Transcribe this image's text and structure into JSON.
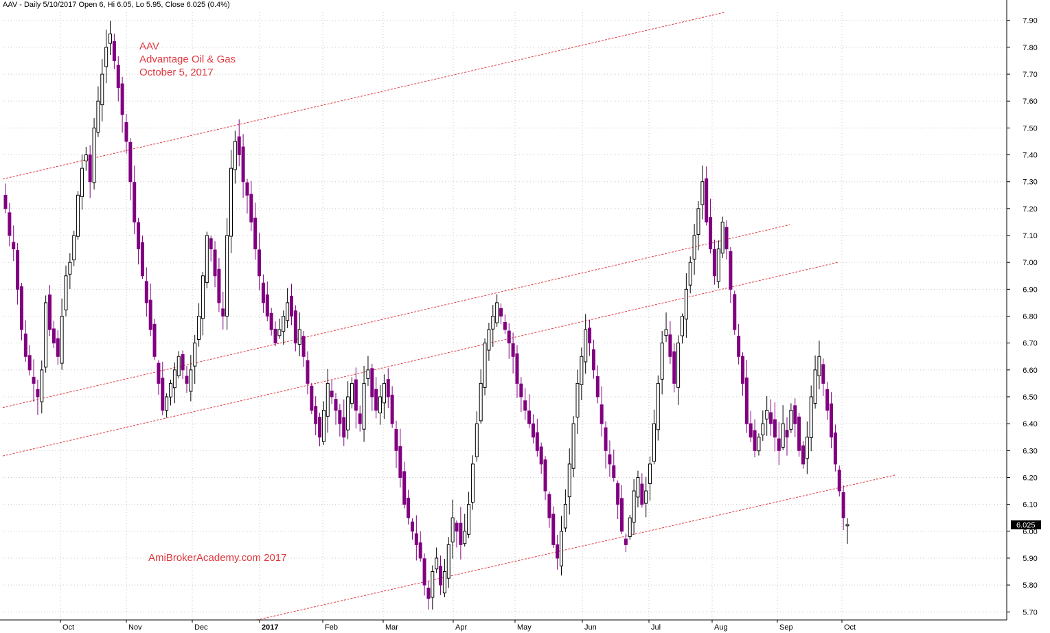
{
  "header": "AAV - Daily 5/10/2017 Open 6, Hi 6.05, Lo 5.95, Close 6.025 (0.4%)",
  "annotations": {
    "ticker": "AAV",
    "company": "Advantage Oil & Gas",
    "date": "October 5, 2017",
    "watermark": "AmiBrokerAcademy.com  2017"
  },
  "last_price_label": "6.025",
  "colors": {
    "up_candle": "#000000",
    "down_candle": "#800080",
    "trend_line": "#e0383e",
    "grid": "#c8c8c8"
  },
  "chart_data": {
    "type": "candlestick",
    "title": "AAV - Daily 5/10/2017",
    "ylim": [
      5.67,
      7.93
    ],
    "y_ticks": [
      "5.70",
      "5.80",
      "5.90",
      "6.00",
      "6.10",
      "6.20",
      "6.30",
      "6.40",
      "6.50",
      "6.60",
      "6.70",
      "6.80",
      "6.90",
      "7.00",
      "7.10",
      "7.20",
      "7.30",
      "7.40",
      "7.50",
      "7.60",
      "7.70",
      "7.80",
      "7.90"
    ],
    "x_labels": [
      "Oct",
      "Nov",
      "Dec",
      "2017",
      "Feb",
      "Mar",
      "Apr",
      "May",
      "Jun",
      "Jul",
      "Aug",
      "Sep",
      "Oct"
    ],
    "grid": true,
    "price_axis": "right",
    "close_path": [
      7.2,
      7.1,
      7.05,
      6.9,
      6.75,
      6.65,
      6.6,
      6.55,
      6.5,
      6.6,
      6.85,
      6.75,
      6.7,
      6.65,
      6.8,
      6.95,
      7.0,
      7.1,
      7.25,
      7.35,
      7.4,
      7.3,
      7.5,
      7.6,
      7.7,
      7.8,
      7.85,
      7.75,
      7.65,
      7.55,
      7.45,
      7.3,
      7.15,
      7.05,
      6.95,
      6.85,
      6.75,
      6.65,
      6.55,
      6.45,
      6.5,
      6.55,
      6.6,
      6.65,
      6.6,
      6.55,
      6.6,
      6.7,
      6.8,
      6.95,
      7.1,
      7.05,
      6.95,
      6.85,
      6.8,
      7.1,
      7.35,
      7.45,
      7.4,
      7.3,
      7.25,
      7.15,
      7.05,
      6.95,
      6.85,
      6.8,
      6.75,
      6.7,
      6.75,
      6.8,
      6.85,
      6.8,
      6.7,
      6.75,
      6.65,
      6.55,
      6.45,
      6.4,
      6.35,
      6.45,
      6.55,
      6.5,
      6.45,
      6.4,
      6.35,
      6.5,
      6.55,
      6.45,
      6.4,
      6.55,
      6.6,
      6.5,
      6.45,
      6.5,
      6.55,
      6.5,
      6.4,
      6.3,
      6.2,
      6.1,
      6.05,
      6.0,
      5.95,
      5.9,
      5.8,
      5.75,
      5.85,
      5.9,
      5.8,
      5.85,
      5.95,
      6.05,
      6.0,
      5.95,
      6.0,
      6.1,
      6.25,
      6.4,
      6.55,
      6.7,
      6.75,
      6.8,
      6.85,
      6.8,
      6.75,
      6.7,
      6.65,
      6.55,
      6.5,
      6.45,
      6.4,
      6.35,
      6.3,
      6.25,
      6.15,
      6.05,
      5.95,
      5.9,
      6.0,
      6.1,
      6.25,
      6.4,
      6.55,
      6.65,
      6.75,
      6.7,
      6.6,
      6.5,
      6.4,
      6.3,
      6.25,
      6.2,
      6.1,
      6.0,
      5.95,
      6.05,
      6.15,
      6.2,
      6.1,
      6.15,
      6.25,
      6.4,
      6.55,
      6.7,
      6.75,
      6.65,
      6.55,
      6.7,
      6.8,
      6.9,
      7.0,
      7.1,
      7.2,
      7.3,
      7.15,
      7.05,
      6.95,
      7.05,
      7.15,
      7.05,
      6.9,
      6.75,
      6.65,
      6.55,
      6.4,
      6.35,
      6.3,
      6.35,
      6.4,
      6.45,
      6.4,
      6.35,
      6.3,
      6.4,
      6.35,
      6.45,
      6.4,
      6.3,
      6.25,
      6.35,
      6.5,
      6.6,
      6.65,
      6.55,
      6.45,
      6.35,
      6.25,
      6.15,
      6.05,
      6.025
    ]
  }
}
